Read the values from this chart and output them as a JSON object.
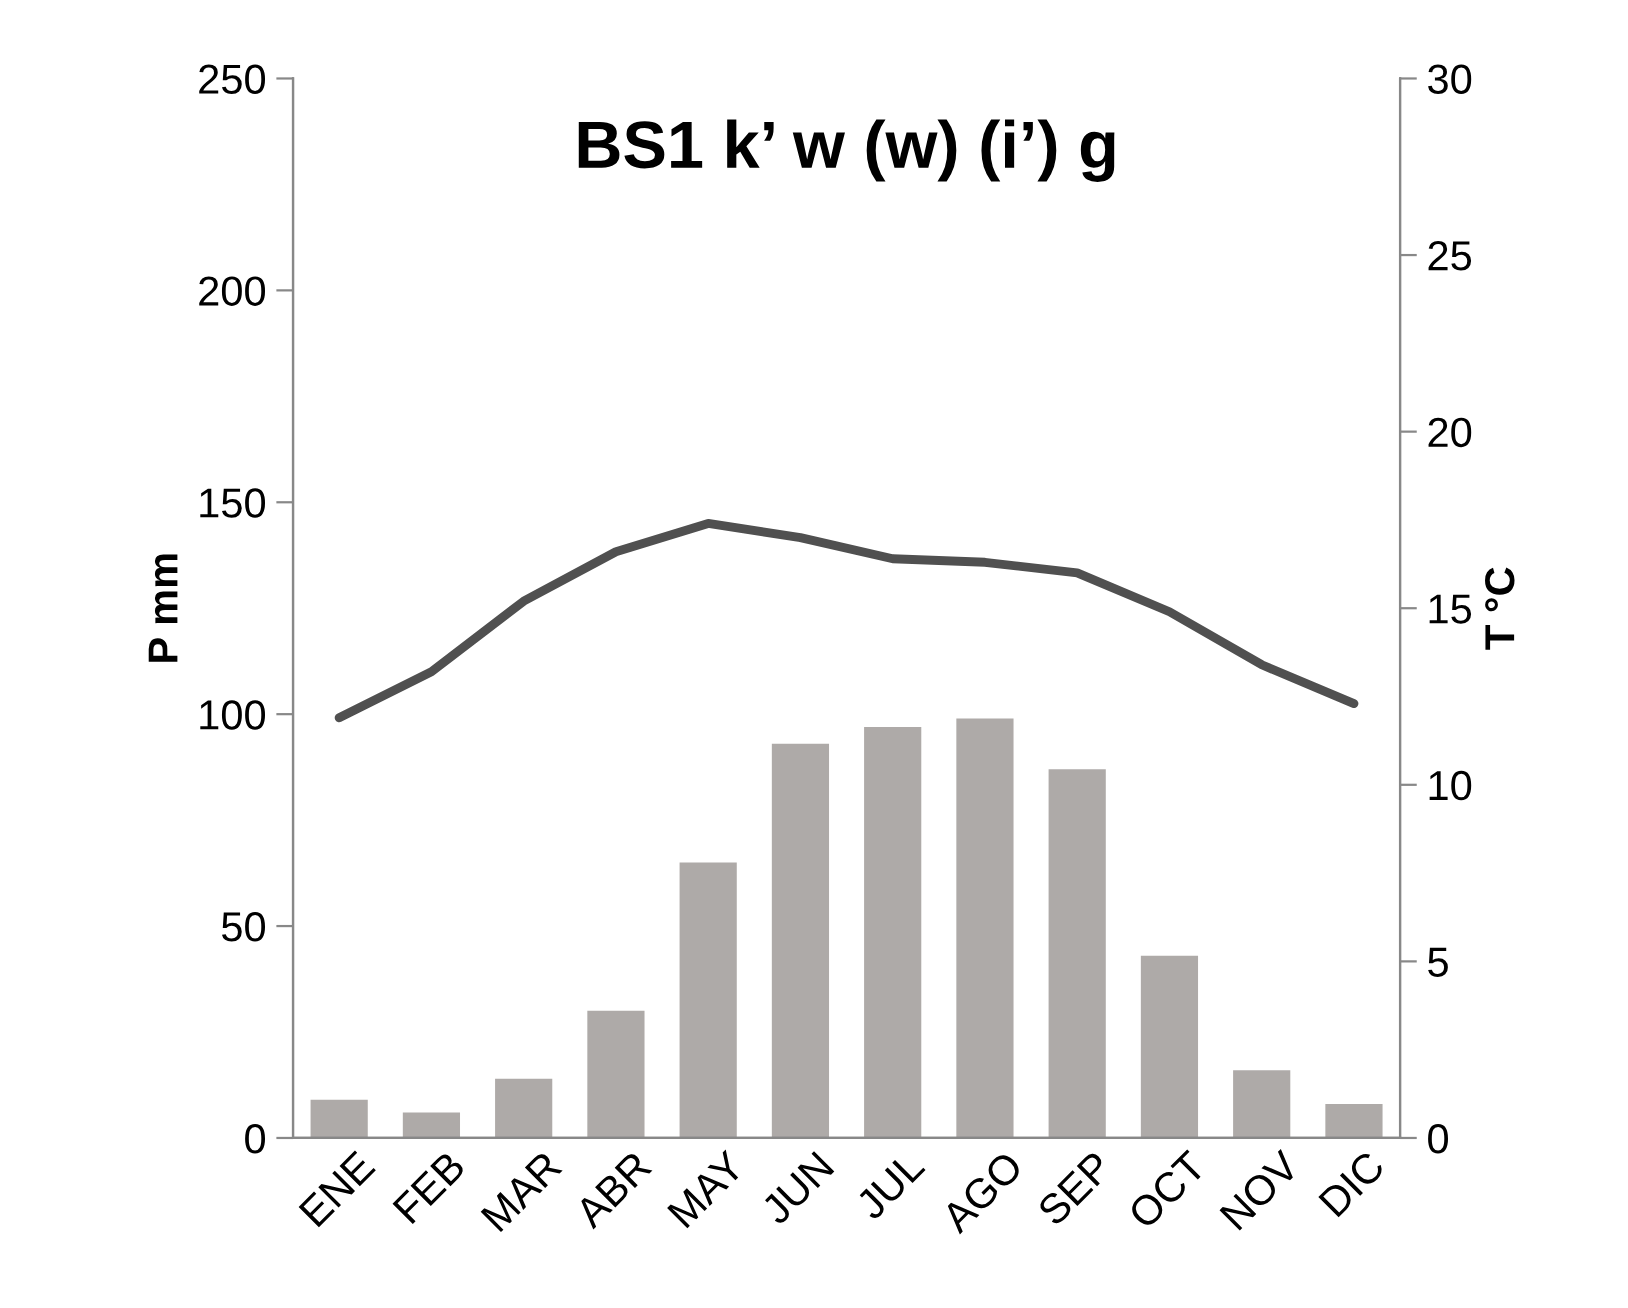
{
  "chart_data": {
    "type": "bar",
    "title": "BS1 k’ w (w) (i’) g",
    "ylabel": "P mm",
    "y2label": "T °C",
    "categories": [
      "ENE",
      "FEB",
      "MAR",
      "ABR",
      "MAY",
      "JUN",
      "JUL",
      "AGO",
      "SEP",
      "OCT",
      "NOV",
      "DIC"
    ],
    "series": [
      {
        "color": "#aeaaa8",
        "values": [
          9,
          6,
          14,
          30,
          65,
          93,
          97,
          99,
          87,
          43,
          16,
          8
        ]
      },
      {
        "type": "line",
        "axis": "y2",
        "color": "#505050",
        "values": [
          11.9,
          13.2,
          15.2,
          16.6,
          17.4,
          17.0,
          16.4,
          16.3,
          16.0,
          14.9,
          13.4,
          12.3
        ]
      }
    ],
    "ylim": [
      0,
      250
    ],
    "yticks": [
      0,
      50,
      100,
      150,
      200,
      250
    ],
    "y2lim": [
      0,
      30
    ],
    "y2ticks": [
      0,
      5,
      10,
      15,
      20,
      25,
      30
    ],
    "grid": false,
    "legend": false
  }
}
